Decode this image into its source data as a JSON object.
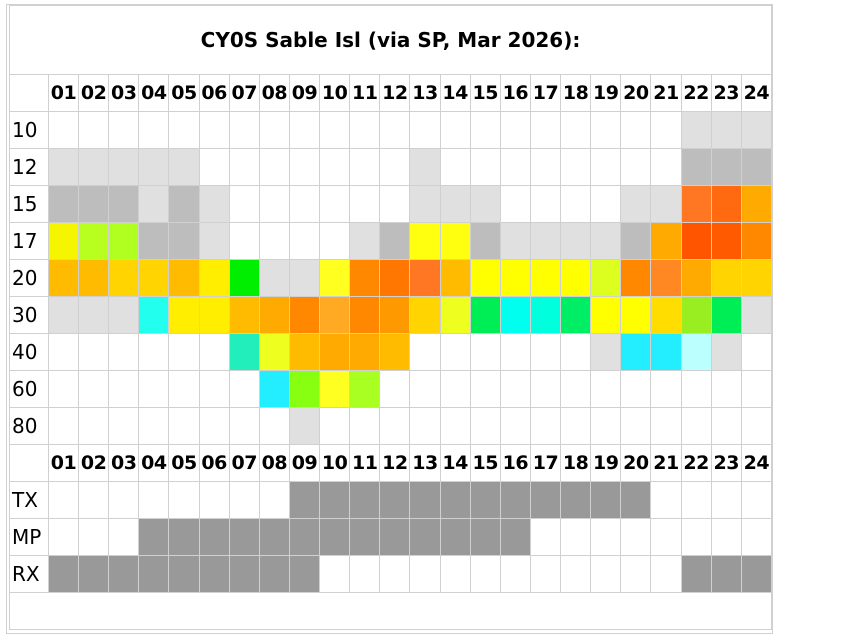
{
  "title": "CY0S Sable Isl (via SP, Mar 2026):",
  "hours": [
    "01",
    "02",
    "03",
    "04",
    "05",
    "06",
    "07",
    "08",
    "09",
    "10",
    "11",
    "12",
    "13",
    "14",
    "15",
    "16",
    "17",
    "18",
    "19",
    "20",
    "21",
    "22",
    "23",
    "24"
  ],
  "bands": [
    {
      "label": "10",
      "cells": [
        null,
        null,
        null,
        null,
        null,
        null,
        null,
        null,
        null,
        null,
        null,
        null,
        null,
        null,
        null,
        null,
        null,
        null,
        null,
        null,
        null,
        "#e0e0e0",
        "#e0e0e0",
        "#e0e0e0"
      ]
    },
    {
      "label": "12",
      "cells": [
        "#e0e0e0",
        "#e0e0e0",
        "#e0e0e0",
        "#e0e0e0",
        "#e0e0e0",
        null,
        null,
        null,
        null,
        null,
        null,
        null,
        "#e0e0e0",
        null,
        null,
        null,
        null,
        null,
        null,
        null,
        null,
        "#bdbdbd",
        "#bdbdbd",
        "#bdbdbd"
      ]
    },
    {
      "label": "15",
      "cells": [
        "#bdbdbd",
        "#bdbdbd",
        "#bdbdbd",
        "#e0e0e0",
        "#bdbdbd",
        "#e0e0e0",
        null,
        null,
        null,
        null,
        null,
        null,
        "#e0e0e0",
        "#e0e0e0",
        "#e0e0e0",
        null,
        null,
        null,
        null,
        "#e0e0e0",
        "#e0e0e0",
        "#ff7722",
        "#ff6a10",
        "#ffaa00"
      ]
    },
    {
      "label": "17",
      "cells": [
        "#f5f500",
        "#b8ff20",
        "#b0ff20",
        "#bdbdbd",
        "#bdbdbd",
        "#e0e0e0",
        null,
        null,
        null,
        null,
        "#e0e0e0",
        "#bdbdbd",
        "#ffff10",
        "#ffff10",
        "#bdbdbd",
        "#e0e0e0",
        "#e0e0e0",
        "#e0e0e0",
        "#e0e0e0",
        "#bdbdbd",
        "#ffaa00",
        "#ff5500",
        "#ff5a00",
        "#ff8800"
      ]
    },
    {
      "label": "20",
      "cells": [
        "#ffbb00",
        "#ffbb00",
        "#ffd400",
        "#ffd400",
        "#ffbb00",
        "#ffee00",
        "#00ee00",
        "#e0e0e0",
        "#e0e0e0",
        "#ffff20",
        "#ff8800",
        "#ff7700",
        "#ff7722",
        "#ffbb00",
        "#ffff00",
        "#ffff00",
        "#ffff00",
        "#ffff00",
        "#ddff20",
        "#ff8800",
        "#ff8822",
        "#ffaa00",
        "#ffd400",
        "#ffd400"
      ]
    },
    {
      "label": "30",
      "cells": [
        "#e0e0e0",
        "#e0e0e0",
        "#e0e0e0",
        "#22ffee",
        "#ffee00",
        "#ffee00",
        "#ffbb00",
        "#ffaa00",
        "#ff8800",
        "#ffaa22",
        "#ff8800",
        "#ff9900",
        "#ffd400",
        "#eeff20",
        "#00ee55",
        "#00ffee",
        "#00ffdd",
        "#00ee66",
        "#ffff00",
        "#ffff00",
        "#ffdd00",
        "#99ee22",
        "#00ee55",
        "#e0e0e0"
      ]
    },
    {
      "label": "40",
      "cells": [
        null,
        null,
        null,
        null,
        null,
        null,
        "#22eebb",
        "#eeff20",
        "#ffbb00",
        "#ffaa00",
        "#ffaa00",
        "#ffbb00",
        null,
        null,
        null,
        null,
        null,
        null,
        "#e0e0e0",
        "#22eeff",
        "#22eeff",
        "#bbffff",
        "#e0e0e0",
        null
      ]
    },
    {
      "label": "60",
      "cells": [
        null,
        null,
        null,
        null,
        null,
        null,
        null,
        "#22eeff",
        "#88ff11",
        "#ffff22",
        "#aaff22",
        null,
        null,
        null,
        null,
        null,
        null,
        null,
        null,
        null,
        null,
        null,
        null,
        null
      ]
    },
    {
      "label": "80",
      "cells": [
        null,
        null,
        null,
        null,
        null,
        null,
        null,
        null,
        "#e0e0e0",
        null,
        null,
        null,
        null,
        null,
        null,
        null,
        null,
        null,
        null,
        null,
        null,
        null,
        null,
        null
      ]
    }
  ],
  "modes": [
    {
      "label": "TX",
      "cells": [
        null,
        null,
        null,
        null,
        null,
        null,
        null,
        null,
        "#999999",
        "#999999",
        "#999999",
        "#999999",
        "#999999",
        "#999999",
        "#999999",
        "#999999",
        "#999999",
        "#999999",
        "#999999",
        "#999999",
        null,
        null,
        null,
        null
      ]
    },
    {
      "label": "MP",
      "cells": [
        null,
        null,
        null,
        "#999999",
        "#999999",
        "#999999",
        "#999999",
        "#999999",
        "#999999",
        "#999999",
        "#999999",
        "#999999",
        "#999999",
        "#999999",
        "#999999",
        "#999999",
        null,
        null,
        null,
        null,
        null,
        null,
        null,
        null
      ]
    },
    {
      "label": "RX",
      "cells": [
        "#999999",
        "#999999",
        "#999999",
        "#999999",
        "#999999",
        "#999999",
        "#999999",
        "#999999",
        "#999999",
        null,
        null,
        null,
        null,
        null,
        null,
        null,
        null,
        null,
        null,
        null,
        null,
        "#999999",
        "#999999",
        "#999999"
      ]
    }
  ]
}
